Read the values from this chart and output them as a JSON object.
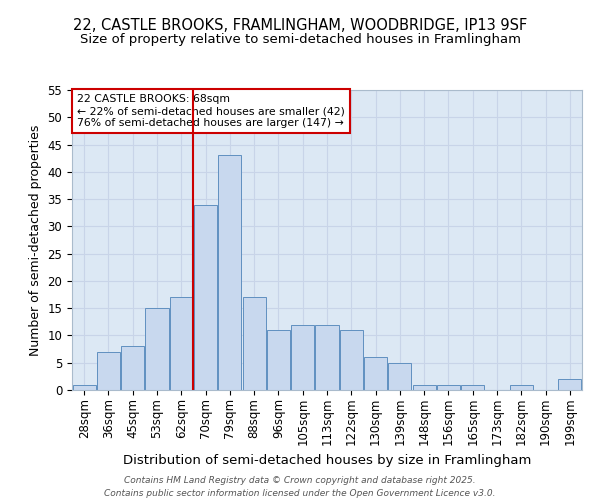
{
  "title_line1": "22, CASTLE BROOKS, FRAMLINGHAM, WOODBRIDGE, IP13 9SF",
  "title_line2": "Size of property relative to semi-detached houses in Framlingham",
  "xlabel": "Distribution of semi-detached houses by size in Framlingham",
  "ylabel": "Number of semi-detached properties",
  "categories": [
    "28sqm",
    "36sqm",
    "45sqm",
    "53sqm",
    "62sqm",
    "70sqm",
    "79sqm",
    "88sqm",
    "96sqm",
    "105sqm",
    "113sqm",
    "122sqm",
    "130sqm",
    "139sqm",
    "148sqm",
    "156sqm",
    "165sqm",
    "173sqm",
    "182sqm",
    "190sqm",
    "199sqm"
  ],
  "values": [
    1,
    7,
    8,
    15,
    17,
    34,
    43,
    17,
    11,
    12,
    12,
    11,
    6,
    5,
    1,
    1,
    1,
    0,
    1,
    0,
    2
  ],
  "bar_color": "#c8d8ee",
  "bar_edge_color": "#6090c0",
  "property_line_x": 4.5,
  "annotation_title": "22 CASTLE BROOKS: 68sqm",
  "annotation_line2": "← 22% of semi-detached houses are smaller (42)",
  "annotation_line3": "76% of semi-detached houses are larger (147) →",
  "annotation_box_color": "#ffffff",
  "annotation_box_edge_color": "#cc0000",
  "vline_color": "#cc0000",
  "ylim": [
    0,
    55
  ],
  "yticks": [
    0,
    5,
    10,
    15,
    20,
    25,
    30,
    35,
    40,
    45,
    50,
    55
  ],
  "grid_color": "#c8d4e8",
  "background_color": "#dce8f4",
  "footer_line1": "Contains HM Land Registry data © Crown copyright and database right 2025.",
  "footer_line2": "Contains public sector information licensed under the Open Government Licence v3.0.",
  "title_fontsize": 10.5,
  "subtitle_fontsize": 9.5
}
